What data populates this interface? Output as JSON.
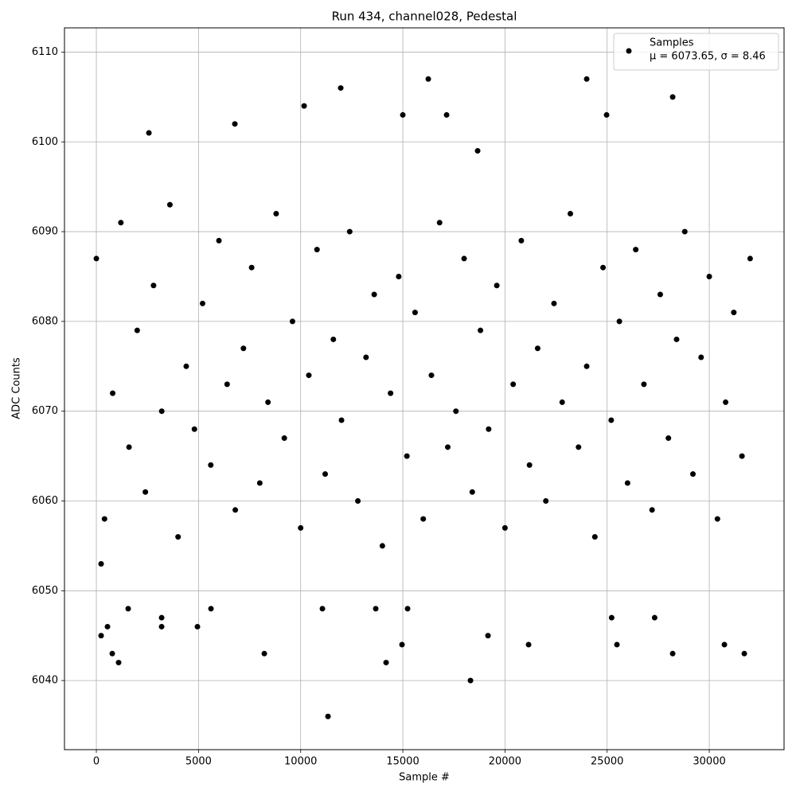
{
  "chart_data": {
    "type": "scatter",
    "title": "Run 434, channel028, Pedestal",
    "x_label": "Sample #",
    "y_label": "ADC Counts",
    "xlim": [
      -1560,
      33660
    ],
    "ylim": [
      6032.3,
      6112.7
    ],
    "xticks": [
      0,
      5000,
      10000,
      15000,
      20000,
      25000,
      30000
    ],
    "yticks": [
      6040,
      6050,
      6060,
      6070,
      6080,
      6090,
      6100,
      6110
    ],
    "grid": true,
    "legend": "upper right",
    "annotation": "μ = 6073.65, σ = 8.46",
    "series": [
      {
        "name": "Samples",
        "color": "#000000",
        "x": [
          234,
          234,
          545,
          779,
          1090,
          1558,
          3195,
          4948,
          2572,
          6779,
          10169,
          11961,
          16247,
          24000,
          28208,
          11338,
          18312,
          14182,
          21156,
          19169,
          14961,
          25480,
          30740,
          31714,
          28208,
          8221,
          17143,
          24974,
          15000,
          18662,
          13675,
          15234,
          11065,
          5610,
          25221,
          27325,
          3195,
          0,
          400,
          800,
          1200,
          1600,
          2000,
          2400,
          2800,
          3200,
          3600,
          4000,
          4400,
          4800,
          5200,
          5600,
          6000,
          6400,
          6800,
          7200,
          7600,
          8000,
          8400,
          8800,
          9200,
          9600,
          10000,
          10400,
          10800,
          11200,
          11600,
          12000,
          12400,
          12800,
          13200,
          13600,
          14000,
          14400,
          14800,
          15200,
          15600,
          16000,
          16400,
          16800,
          17200,
          17600,
          18000,
          18400,
          18800,
          19200,
          19600,
          20000,
          20400,
          20800,
          21200,
          21600,
          22000,
          22400,
          22800,
          23200,
          23600,
          24000,
          24400,
          24800,
          25200,
          25600,
          26000,
          26400,
          26800,
          27200,
          27600,
          28000,
          28400,
          28800,
          29200,
          29600,
          30000,
          30400,
          30800,
          31200,
          31600,
          32000
        ],
        "values": [
          6053,
          6045,
          6046,
          6043,
          6042,
          6048,
          6046,
          6046,
          6101,
          6102,
          6104,
          6106,
          6107,
          6107,
          6105,
          6036,
          6040,
          6042,
          6044,
          6045,
          6044,
          6044,
          6044,
          6043,
          6043,
          6043,
          6103,
          6103,
          6103,
          6099,
          6048,
          6048,
          6048,
          6048,
          6047,
          6047,
          6047,
          6087,
          6058,
          6072,
          6091,
          6066,
          6079,
          6061,
          6084,
          6070,
          6093,
          6056,
          6075,
          6068,
          6082,
          6064,
          6089,
          6073,
          6059,
          6077,
          6086,
          6062,
          6071,
          6092,
          6067,
          6080,
          6057,
          6074,
          6088,
          6063,
          6078,
          6069,
          6090,
          6060,
          6076,
          6083,
          6055,
          6072,
          6085,
          6065,
          6081,
          6058,
          6074,
          6091,
          6066,
          6070,
          6087,
          6061,
          6079,
          6068,
          6084,
          6057,
          6073,
          6089,
          6064,
          6077,
          6060,
          6082,
          6071,
          6092,
          6066,
          6075,
          6056,
          6086,
          6069,
          6080,
          6062,
          6088,
          6073,
          6059,
          6083,
          6067,
          6078,
          6090,
          6063,
          6076,
          6085,
          6058,
          6071,
          6081,
          6065,
          6087
        ]
      }
    ]
  }
}
